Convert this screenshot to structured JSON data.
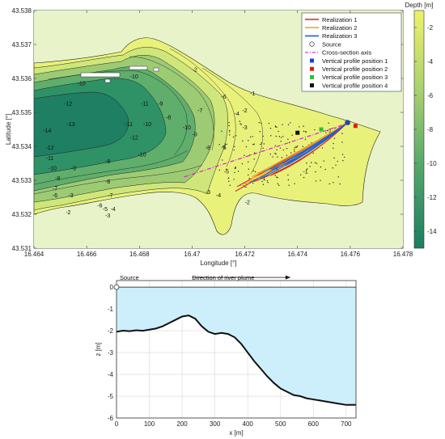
{
  "chart_data": [
    {
      "type": "contour",
      "xlabel": "Longitude [°]",
      "ylabel": "Latitude [°]",
      "xlim": [
        16.464,
        16.478
      ],
      "ylim": [
        43.531,
        43.538
      ],
      "xticks": [
        "16.464",
        "16.466",
        "16.468",
        "16.47",
        "16.472",
        "16.474",
        "16.476",
        "16.478"
      ],
      "yticks": [
        "43.531",
        "43.532",
        "43.533",
        "43.534",
        "43.535",
        "43.536",
        "43.537",
        "43.538"
      ],
      "colorbar": {
        "title": "Depth [m]",
        "ticks": [
          "-2",
          "-4",
          "-6",
          "-8",
          "-10",
          "-12",
          "-14"
        ],
        "range": [
          -15,
          -1
        ],
        "low_color": "#1a7e62",
        "high_color": "#eef26a"
      },
      "contour_labels": [
        {
          "text": "-10",
          "x": 16.4658,
          "y": 43.5358
        },
        {
          "text": "-12",
          "x": 16.4653,
          "y": 43.5352
        },
        {
          "text": "-13",
          "x": 16.4654,
          "y": 43.5346
        },
        {
          "text": "-14",
          "x": 16.4645,
          "y": 43.5344
        },
        {
          "text": "-12",
          "x": 16.4646,
          "y": 43.5339
        },
        {
          "text": "-11",
          "x": 16.4646,
          "y": 43.5336
        },
        {
          "text": "-10",
          "x": 16.4647,
          "y": 43.5333
        },
        {
          "text": "-9",
          "x": 16.4655,
          "y": 43.5333
        },
        {
          "text": "-8",
          "x": 16.4649,
          "y": 43.533
        },
        {
          "text": "-7",
          "x": 16.4648,
          "y": 43.5327
        },
        {
          "text": "-6",
          "x": 16.4648,
          "y": 43.5325
        },
        {
          "text": "-3",
          "x": 16.4654,
          "y": 43.5325
        },
        {
          "text": "-2",
          "x": 16.4653,
          "y": 43.532
        },
        {
          "text": "-9",
          "x": 16.4668,
          "y": 43.5335
        },
        {
          "text": "-8",
          "x": 16.4668,
          "y": 43.5329
        },
        {
          "text": "-7",
          "x": 16.4669,
          "y": 43.5325
        },
        {
          "text": "-6",
          "x": 16.4665,
          "y": 43.5322
        },
        {
          "text": "-5",
          "x": 16.4667,
          "y": 43.5321
        },
        {
          "text": "-4",
          "x": 16.467,
          "y": 43.5321
        },
        {
          "text": "-3",
          "x": 16.4668,
          "y": 43.5319
        },
        {
          "text": "-10",
          "x": 16.4678,
          "y": 43.536
        },
        {
          "text": "-11",
          "x": 16.4682,
          "y": 43.5352
        },
        {
          "text": "-10",
          "x": 16.4683,
          "y": 43.5346
        },
        {
          "text": "-11",
          "x": 16.4676,
          "y": 43.5346
        },
        {
          "text": "-12",
          "x": 16.4678,
          "y": 43.5342
        },
        {
          "text": "-10",
          "x": 16.4681,
          "y": 43.5337
        },
        {
          "text": "-9",
          "x": 16.4688,
          "y": 43.5352
        },
        {
          "text": "-8",
          "x": 16.4691,
          "y": 43.5348
        },
        {
          "text": "-10",
          "x": 16.4698,
          "y": 43.5345
        },
        {
          "text": "-9",
          "x": 16.4701,
          "y": 43.5343
        },
        {
          "text": "-8",
          "x": 16.4706,
          "y": 43.5339
        },
        {
          "text": "-7",
          "x": 16.4703,
          "y": 43.535
        },
        {
          "text": "-6",
          "x": 16.4712,
          "y": 43.5354
        },
        {
          "text": "-5",
          "x": 16.4712,
          "y": 43.5339
        },
        {
          "text": "-4",
          "x": 16.4717,
          "y": 43.5349
        },
        {
          "text": "-3",
          "x": 16.472,
          "y": 43.5345
        },
        {
          "text": "-2",
          "x": 16.472,
          "y": 43.535
        },
        {
          "text": "-5",
          "x": 16.4713,
          "y": 43.5332
        },
        {
          "text": "-4",
          "x": 16.471,
          "y": 43.5325
        },
        {
          "text": "-3",
          "x": 16.4706,
          "y": 43.5326
        },
        {
          "text": "-2",
          "x": 16.472,
          "y": 43.5328
        },
        {
          "text": "-1",
          "x": 16.4727,
          "y": 43.533
        },
        {
          "text": "-2",
          "x": 16.4721,
          "y": 43.5323
        },
        {
          "text": "-1",
          "x": 16.4743,
          "y": 43.5332
        },
        {
          "text": "-1",
          "x": 16.4752,
          "y": 43.5344
        },
        {
          "text": "-1",
          "x": 16.4723,
          "y": 43.5355
        },
        {
          "text": "-2",
          "x": 16.4701,
          "y": 43.5362
        },
        {
          "text": "-1",
          "x": 16.4745,
          "y": 43.534
        }
      ],
      "legend": {
        "placement": "top-right",
        "items": [
          {
            "label": "Realization 1",
            "kind": "line",
            "color": "#d62728"
          },
          {
            "label": "Realization 2",
            "kind": "line",
            "color": "#f5a623"
          },
          {
            "label": "Realization 3",
            "kind": "line",
            "color": "#1f5fd6"
          },
          {
            "label": "Source",
            "kind": "circle",
            "color": "#555555"
          },
          {
            "label": "Cross-section axis",
            "kind": "dashdot",
            "color": "#e020c8"
          },
          {
            "label": "Vertical profile position 1",
            "kind": "square",
            "color": "#1f3fd6"
          },
          {
            "label": "Vertical profile position 2",
            "kind": "square",
            "color": "#e01818"
          },
          {
            "label": "Vertical profile position 3",
            "kind": "square",
            "color": "#2cc22c"
          },
          {
            "label": "Vertical profile position 4",
            "kind": "square",
            "color": "#111111"
          }
        ]
      },
      "source": {
        "x": 16.4759,
        "y": 43.5347
      },
      "cross_section_axis": [
        [
          16.4697,
          43.5331
        ],
        [
          16.476,
          43.5347
        ]
      ],
      "profile_positions": [
        {
          "name": "Vertical profile position 1",
          "x": 16.4759,
          "y": 43.5347
        },
        {
          "name": "Vertical profile position 2",
          "x": 16.4762,
          "y": 43.5346
        },
        {
          "name": "Vertical profile position 3",
          "x": 16.4749,
          "y": 43.5345
        },
        {
          "name": "Vertical profile position 4",
          "x": 16.474,
          "y": 43.5344
        }
      ]
    },
    {
      "type": "area",
      "xlabel": "x [m]",
      "ylabel": "z [m]",
      "xlim": [
        0,
        730
      ],
      "ylim": [
        -6,
        0.3
      ],
      "xticks": [
        "0",
        "100",
        "200",
        "300",
        "400",
        "500",
        "600",
        "700"
      ],
      "yticks": [
        "0",
        "-1",
        "-2",
        "-3",
        "-4",
        "-5",
        "-6"
      ],
      "annotations": {
        "source": "Source",
        "direction": "Direction of river plume"
      },
      "fill_color": "#cdeefb",
      "x": [
        0,
        20,
        40,
        60,
        80,
        100,
        120,
        140,
        160,
        180,
        200,
        220,
        240,
        260,
        280,
        300,
        320,
        340,
        360,
        380,
        400,
        420,
        440,
        460,
        480,
        500,
        520,
        540,
        560,
        580,
        600,
        620,
        640,
        660,
        680,
        700,
        720,
        730
      ],
      "y": [
        -2.05,
        -2.0,
        -2.02,
        -1.98,
        -2.0,
        -1.95,
        -1.9,
        -1.8,
        -1.65,
        -1.5,
        -1.35,
        -1.3,
        -1.45,
        -1.8,
        -2.05,
        -2.15,
        -2.1,
        -2.15,
        -2.3,
        -2.6,
        -3.0,
        -3.4,
        -3.75,
        -4.1,
        -4.4,
        -4.65,
        -4.8,
        -4.95,
        -5.0,
        -5.1,
        -5.15,
        -5.2,
        -5.25,
        -5.3,
        -5.35,
        -5.4,
        -5.4,
        -5.4
      ]
    }
  ]
}
